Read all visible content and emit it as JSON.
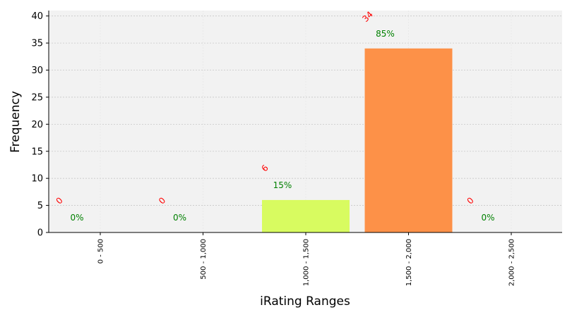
{
  "chart_data": {
    "type": "bar",
    "xlabel": "iRating Ranges",
    "ylabel": "Frequency",
    "categories": [
      "0 - 500",
      "500 - 1,000",
      "1,000 - 1,500",
      "1,500 - 2,000",
      "2,000 - 2,500"
    ],
    "values": [
      0,
      0,
      6,
      34,
      0
    ],
    "percent_labels": [
      "0%",
      "0%",
      "15%",
      "85%",
      "0%"
    ],
    "count_labels": [
      "0",
      "0",
      "6",
      "34",
      "0"
    ],
    "bar_colors": [
      "#e8f0a0",
      "#e8f0a0",
      "#d8fb60",
      "#fd9148",
      "#e8f0a0"
    ],
    "ylim": [
      0,
      41
    ],
    "yticks": [
      0,
      5,
      10,
      15,
      20,
      25,
      30,
      35,
      40
    ],
    "grid": true,
    "plot_background": "#f2f2f2",
    "count_label_color": "#ff0000",
    "percent_label_color": "#008000"
  }
}
